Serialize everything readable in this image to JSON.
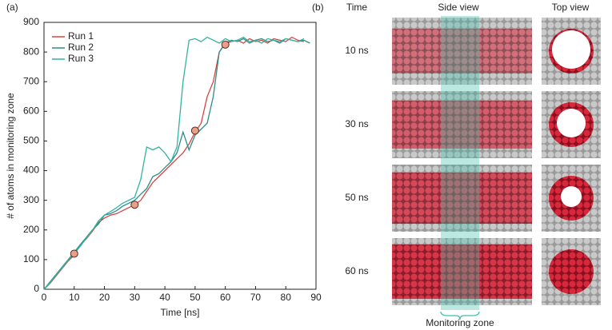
{
  "chart_data": {
    "type": "line",
    "label": "(a)",
    "xlabel": "Time [ns]",
    "ylabel": "# of atoms in monitoring zone",
    "x": [
      0,
      2,
      4,
      6,
      8,
      10,
      12,
      14,
      16,
      18,
      20,
      22,
      24,
      26,
      28,
      30,
      32,
      34,
      36,
      38,
      40,
      42,
      44,
      46,
      48,
      50,
      52,
      54,
      56,
      58,
      60,
      62,
      64,
      66,
      68,
      70,
      72,
      74,
      76,
      78,
      80,
      82,
      84,
      86,
      88
    ],
    "series": [
      {
        "name": "Run 1",
        "color": "#d64541",
        "values": [
          0,
          20,
          45,
          70,
          95,
          115,
          150,
          170,
          195,
          225,
          240,
          250,
          255,
          265,
          275,
          285,
          300,
          330,
          360,
          380,
          400,
          420,
          440,
          460,
          490,
          530,
          560,
          650,
          700,
          800,
          830,
          835,
          840,
          830,
          845,
          835,
          840,
          830,
          845,
          840,
          835,
          850,
          840,
          835,
          null
        ]
      },
      {
        "name": "Run 2",
        "color": "#2b8f86",
        "values": [
          0,
          25,
          50,
          75,
          100,
          125,
          150,
          175,
          200,
          220,
          250,
          255,
          265,
          280,
          290,
          300,
          320,
          340,
          380,
          390,
          410,
          430,
          460,
          530,
          470,
          520,
          540,
          560,
          650,
          800,
          830,
          840,
          835,
          845,
          830,
          840,
          845,
          835,
          840,
          830,
          845,
          840,
          835,
          840,
          830
        ]
      },
      {
        "name": "Run 3",
        "color": "#2fb3a3",
        "values": [
          0,
          22,
          48,
          72,
          98,
          120,
          145,
          172,
          198,
          230,
          250,
          262,
          275,
          290,
          300,
          310,
          370,
          480,
          470,
          480,
          460,
          430,
          480,
          700,
          840,
          845,
          835,
          850,
          840,
          830,
          845,
          835,
          840,
          850,
          835,
          840,
          830,
          845,
          840,
          835,
          845,
          840,
          835,
          845,
          null
        ]
      }
    ],
    "highlight": {
      "x": [
        10,
        30,
        50,
        60
      ],
      "values": [
        120,
        285,
        535,
        825
      ],
      "color": "#e8a08a"
    },
    "xlim": [
      0,
      90
    ],
    "xticks": [
      0,
      10,
      20,
      30,
      40,
      50,
      60,
      70,
      80,
      90
    ],
    "ylim": [
      0,
      900
    ],
    "yticks": [
      0,
      100,
      200,
      300,
      400,
      500,
      600,
      700,
      800,
      900
    ],
    "legend": "upper left"
  },
  "panel_b": {
    "label": "(b)",
    "time_header": "Time",
    "side_header": "Side view",
    "top_header": "Top view",
    "rows": [
      "10 ns",
      "30 ns",
      "50 ns",
      "60 ns"
    ],
    "zone_label": "Monitoring zone"
  }
}
